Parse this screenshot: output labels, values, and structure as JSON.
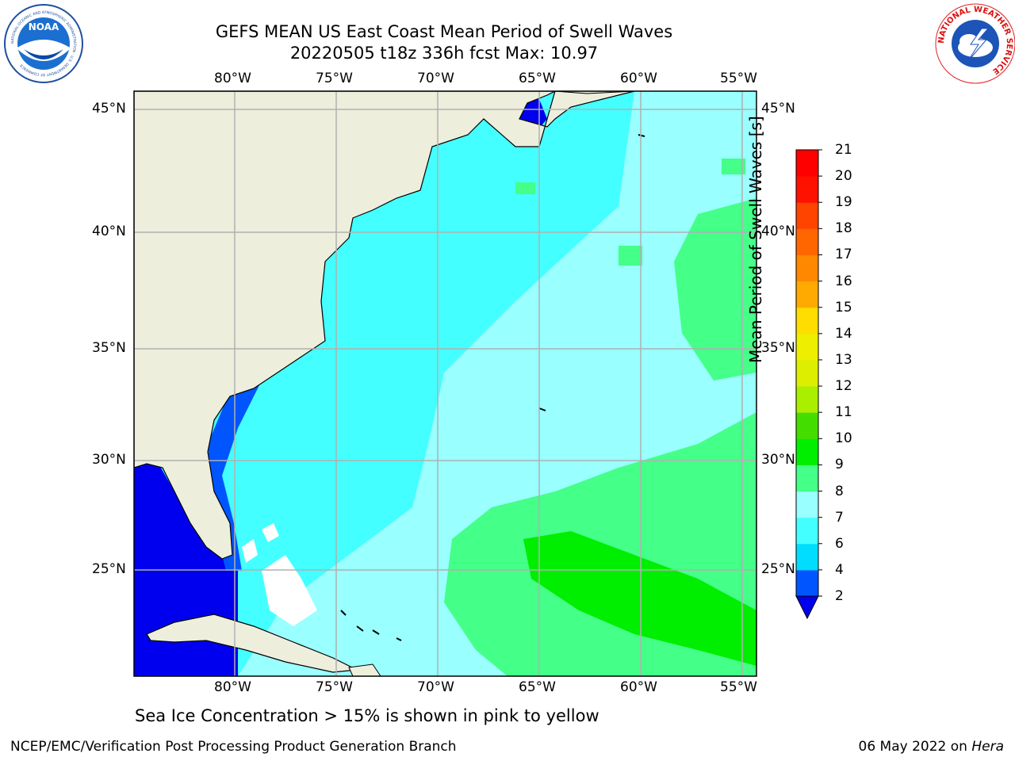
{
  "header": {
    "title_line1": "GEFS MEAN US East Coast Mean Period of Swell Waves",
    "title_line2": "20220505 t18z 336h fcst   Max: 10.97"
  },
  "logos": {
    "left": {
      "name": "NOAA",
      "ring_text": "NATIONAL OCEANIC AND ATMOSPHERIC ADMINISTRATION · U.S. DEPARTMENT OF COMMERCE",
      "center_text": "NOAA"
    },
    "right": {
      "name": "National Weather Service",
      "ring_text": "NATIONAL WEATHER SERVICE"
    }
  },
  "map": {
    "lon_labels": [
      "80°W",
      "75°W",
      "70°W",
      "65°W",
      "60°W",
      "55°W"
    ],
    "lat_labels": [
      "45°N",
      "40°N",
      "35°N",
      "30°N",
      "25°N"
    ],
    "extent": {
      "lon": [
        -85,
        -54.2
      ],
      "lat": [
        20.5,
        46.3
      ]
    },
    "land_color": "#eeeedd",
    "grid": true
  },
  "colorbar": {
    "label": "Mean Period of Swell Waves [s]",
    "ticks": [
      "2",
      "4",
      "6",
      "7",
      "8",
      "9",
      "10",
      "11",
      "12",
      "13",
      "14",
      "15",
      "16",
      "17",
      "18",
      "19",
      "20",
      "21"
    ],
    "colors": [
      "#0055ff",
      "#00ddff",
      "#44ffff",
      "#99ffff",
      "#44ff88",
      "#00ee00",
      "#44dd00",
      "#aaee00",
      "#ddee00",
      "#eeee00",
      "#ffdd00",
      "#ffaa00",
      "#ff8800",
      "#ff6600",
      "#ff4400",
      "#ff1100",
      "#ff0000"
    ],
    "extend_color": "#0000ee"
  },
  "note": "Sea Ice Concentration > 15% is shown in pink to yellow",
  "footer": {
    "left": "NCEP/EMC/Verification Post Processing Product Generation Branch",
    "date": "06 May 2022 on ",
    "host": "Hera"
  }
}
